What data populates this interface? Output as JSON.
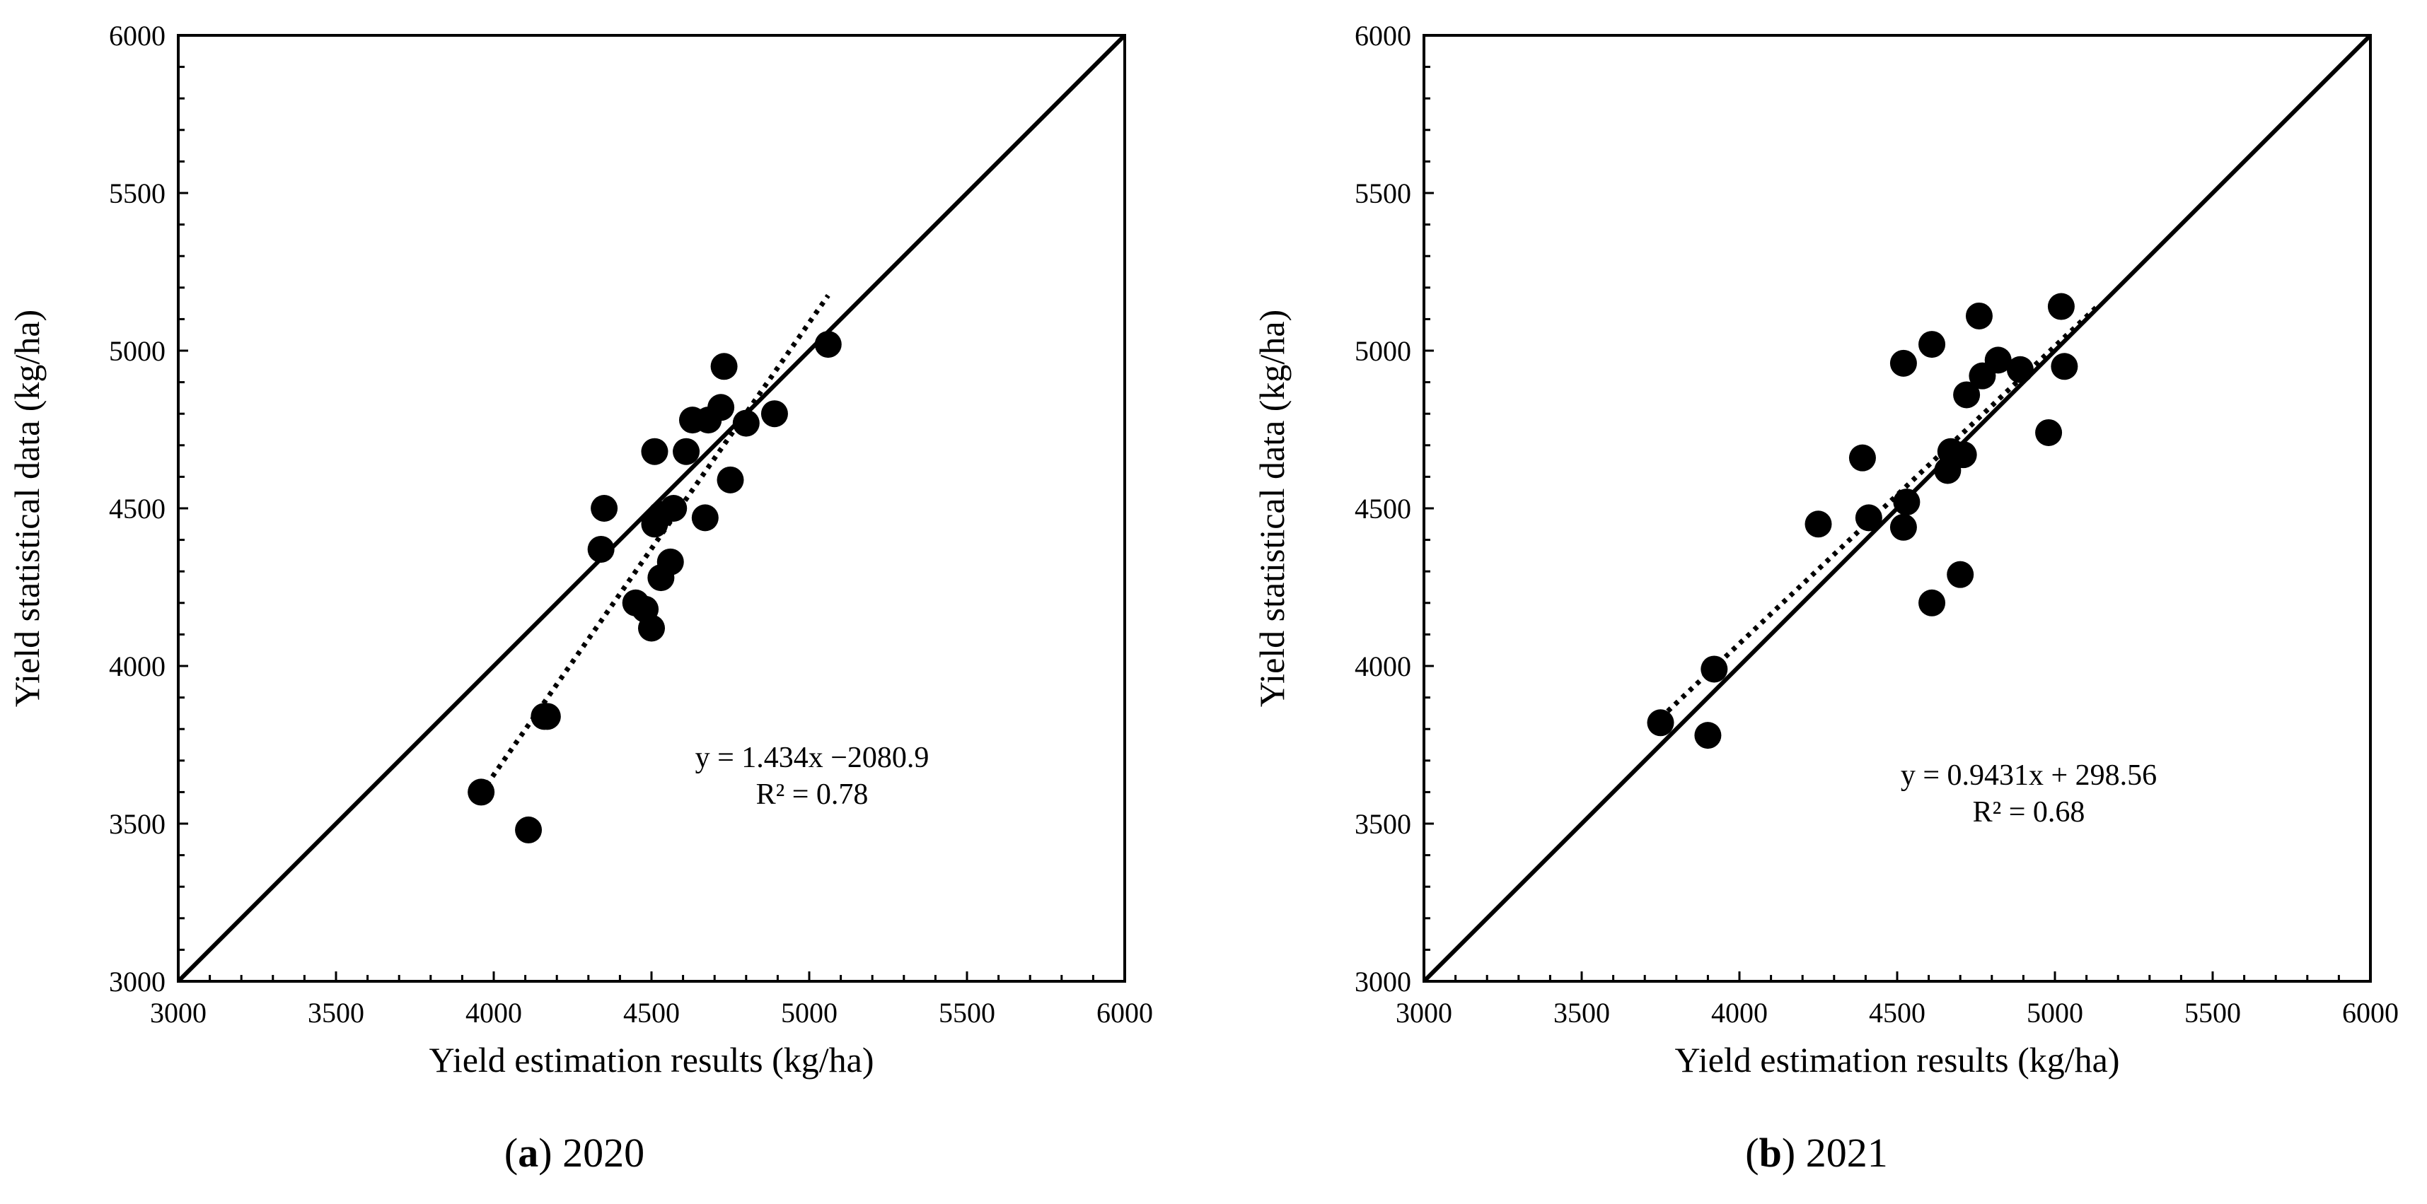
{
  "chart_data": [
    {
      "type": "scatter",
      "id": "a",
      "xlabel": "Yield estimation results (kg/ha)",
      "ylabel": "Yield statistical data (kg/ha)",
      "xlim": [
        3000,
        6000
      ],
      "ylim": [
        3000,
        6000
      ],
      "ticks": [
        3000,
        3500,
        4000,
        4500,
        5000,
        5500,
        6000
      ],
      "tick_labels": [
        "3000",
        "3500",
        "4000",
        "4500",
        "5000",
        "5500",
        "6000"
      ],
      "equation": "y = 1.434x −2080.9",
      "r_squared": "R² = 0.78",
      "caption_letter": "a",
      "caption_year": "2020",
      "identity_line": [
        [
          3000,
          3000
        ],
        [
          6000,
          6000
        ]
      ],
      "trendline": {
        "slope": 1.434,
        "intercept": -2080.9,
        "x_range": [
          3960,
          5060
        ]
      },
      "points": [
        {
          "x": 3960,
          "y": 3600
        },
        {
          "x": 4110,
          "y": 3480
        },
        {
          "x": 4160,
          "y": 3840
        },
        {
          "x": 4170,
          "y": 3840
        },
        {
          "x": 4340,
          "y": 4370
        },
        {
          "x": 4350,
          "y": 4500
        },
        {
          "x": 4450,
          "y": 4200
        },
        {
          "x": 4480,
          "y": 4180
        },
        {
          "x": 4500,
          "y": 4120
        },
        {
          "x": 4510,
          "y": 4450
        },
        {
          "x": 4510,
          "y": 4680
        },
        {
          "x": 4530,
          "y": 4280
        },
        {
          "x": 4530,
          "y": 4480
        },
        {
          "x": 4560,
          "y": 4330
        },
        {
          "x": 4570,
          "y": 4500
        },
        {
          "x": 4610,
          "y": 4680
        },
        {
          "x": 4630,
          "y": 4780
        },
        {
          "x": 4670,
          "y": 4470
        },
        {
          "x": 4680,
          "y": 4780
        },
        {
          "x": 4720,
          "y": 4820
        },
        {
          "x": 4730,
          "y": 4950
        },
        {
          "x": 4750,
          "y": 4590
        },
        {
          "x": 4800,
          "y": 4770
        },
        {
          "x": 4890,
          "y": 4800
        },
        {
          "x": 5060,
          "y": 5020
        }
      ]
    },
    {
      "type": "scatter",
      "id": "b",
      "xlabel": "Yield estimation results (kg/ha)",
      "ylabel": "Yield statistical data (kg/ha)",
      "xlim": [
        3000,
        6000
      ],
      "ylim": [
        3000,
        6000
      ],
      "ticks": [
        3000,
        3500,
        4000,
        4500,
        5000,
        5500,
        6000
      ],
      "tick_labels": [
        "3000",
        "3500",
        "4000",
        "4500",
        "5000",
        "5500",
        "6000"
      ],
      "equation": "y = 0.9431x + 298.56",
      "r_squared": "R² = 0.68",
      "caption_letter": "b",
      "caption_year": "2021",
      "identity_line": [
        [
          3000,
          3000
        ],
        [
          6000,
          6000
        ]
      ],
      "trendline": {
        "slope": 0.9431,
        "intercept": 298.56,
        "x_range": [
          3750,
          5130
        ]
      },
      "points": [
        {
          "x": 3750,
          "y": 3820
        },
        {
          "x": 3900,
          "y": 3780
        },
        {
          "x": 3920,
          "y": 3990
        },
        {
          "x": 4250,
          "y": 4450
        },
        {
          "x": 4390,
          "y": 4660
        },
        {
          "x": 4410,
          "y": 4470
        },
        {
          "x": 4520,
          "y": 4440
        },
        {
          "x": 4530,
          "y": 4520
        },
        {
          "x": 4520,
          "y": 4960
        },
        {
          "x": 4610,
          "y": 4200
        },
        {
          "x": 4610,
          "y": 5020
        },
        {
          "x": 4660,
          "y": 4620
        },
        {
          "x": 4670,
          "y": 4680
        },
        {
          "x": 4700,
          "y": 4290
        },
        {
          "x": 4710,
          "y": 4670
        },
        {
          "x": 4720,
          "y": 4860
        },
        {
          "x": 4760,
          "y": 5110
        },
        {
          "x": 4770,
          "y": 4920
        },
        {
          "x": 4820,
          "y": 4970
        },
        {
          "x": 4890,
          "y": 4940
        },
        {
          "x": 4980,
          "y": 4740
        },
        {
          "x": 5020,
          "y": 5140
        },
        {
          "x": 5030,
          "y": 4950
        }
      ]
    }
  ]
}
